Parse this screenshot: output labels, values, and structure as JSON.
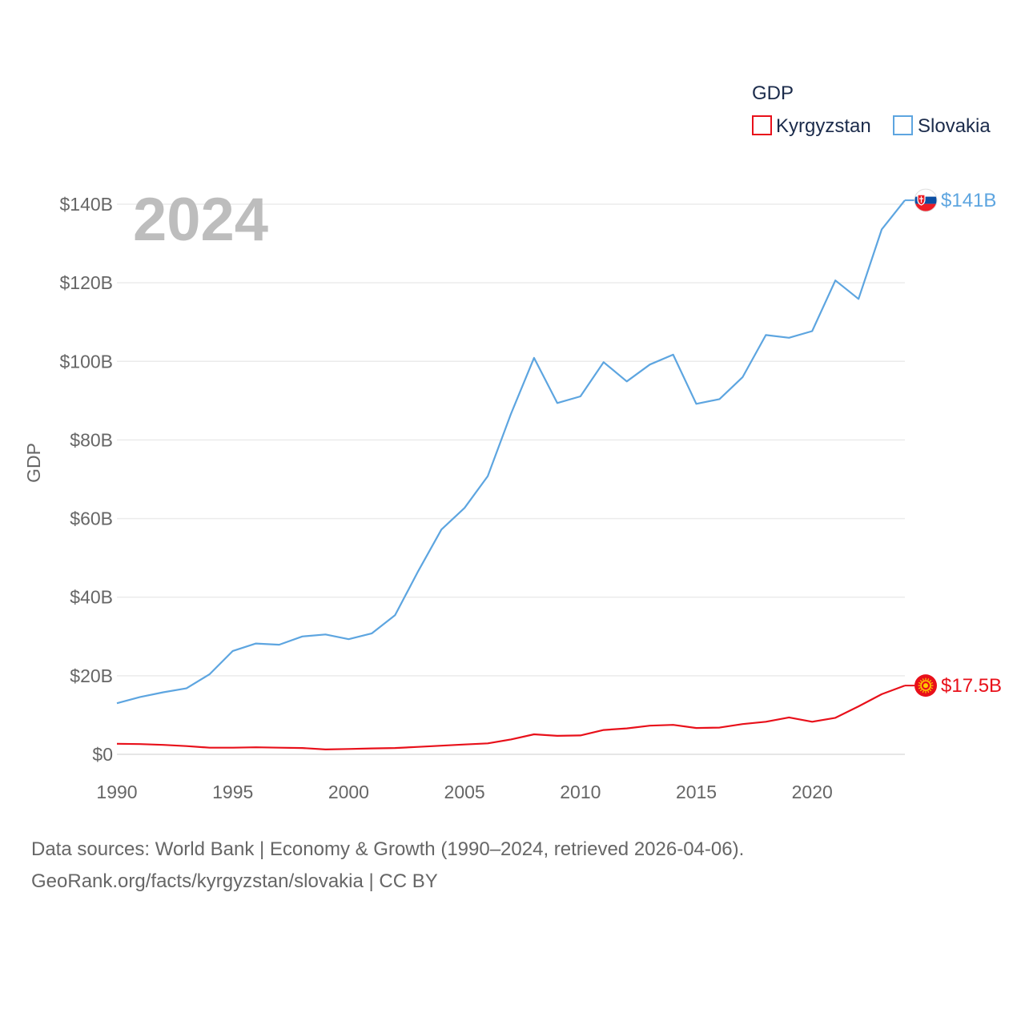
{
  "chart_data": {
    "type": "line",
    "title": "GDP",
    "ylabel": "GDP",
    "xlabel": "",
    "year_label": "2024",
    "x": [
      1990,
      1991,
      1992,
      1993,
      1994,
      1995,
      1996,
      1997,
      1998,
      1999,
      2000,
      2001,
      2002,
      2003,
      2004,
      2005,
      2006,
      2007,
      2008,
      2009,
      2010,
      2011,
      2012,
      2013,
      2014,
      2015,
      2016,
      2017,
      2018,
      2019,
      2020,
      2021,
      2022,
      2023,
      2024
    ],
    "xlim": [
      1990,
      2024
    ],
    "ylim": [
      0,
      140
    ],
    "x_ticks": [
      {
        "value": 1990,
        "label": "1990"
      },
      {
        "value": 1995,
        "label": "1995"
      },
      {
        "value": 2000,
        "label": "2000"
      },
      {
        "value": 2005,
        "label": "2005"
      },
      {
        "value": 2010,
        "label": "2010"
      },
      {
        "value": 2015,
        "label": "2015"
      },
      {
        "value": 2020,
        "label": "2020"
      }
    ],
    "y_ticks": [
      {
        "value": 0,
        "label": "$0"
      },
      {
        "value": 20,
        "label": "$20B"
      },
      {
        "value": 40,
        "label": "$40B"
      },
      {
        "value": 60,
        "label": "$60B"
      },
      {
        "value": 80,
        "label": "$80B"
      },
      {
        "value": 100,
        "label": "$100B"
      },
      {
        "value": 120,
        "label": "$120B"
      },
      {
        "value": 140,
        "label": "$140B"
      }
    ],
    "legend": {
      "title": "GDP",
      "position": "top-right"
    },
    "series": [
      {
        "name": "Kyrgyzstan",
        "color": "#e8101a",
        "end_label": "$17.5B",
        "flag_icon": "kyrgyzstan-flag-icon",
        "values": [
          2.7,
          2.6,
          2.4,
          2.1,
          1.7,
          1.7,
          1.8,
          1.7,
          1.6,
          1.25,
          1.37,
          1.5,
          1.6,
          1.9,
          2.2,
          2.5,
          2.8,
          3.8,
          5.1,
          4.7,
          4.8,
          6.2,
          6.6,
          7.3,
          7.5,
          6.7,
          6.8,
          7.7,
          8.3,
          9.4,
          8.3,
          9.3,
          12.2,
          15.3,
          17.5
        ]
      },
      {
        "name": "Slovakia",
        "color": "#5da5e0",
        "end_label": "$141B",
        "flag_icon": "slovakia-flag-icon",
        "values": [
          13.0,
          14.6,
          15.8,
          16.8,
          20.4,
          26.3,
          28.2,
          27.9,
          30.0,
          30.5,
          29.3,
          30.8,
          35.4,
          46.6,
          57.2,
          62.7,
          70.8,
          86.6,
          100.9,
          89.4,
          91.1,
          99.8,
          94.9,
          99.2,
          101.7,
          89.2,
          90.4,
          96.0,
          106.7,
          106.0,
          107.7,
          120.6,
          115.9,
          133.6,
          141.0
        ]
      }
    ],
    "source_lines": [
      "Data sources: World Bank | Economy & Growth (1990–2024, retrieved 2026-04-06).",
      "GeoRank.org/facts/kyrgyzstan/slovakia | CC BY"
    ]
  }
}
